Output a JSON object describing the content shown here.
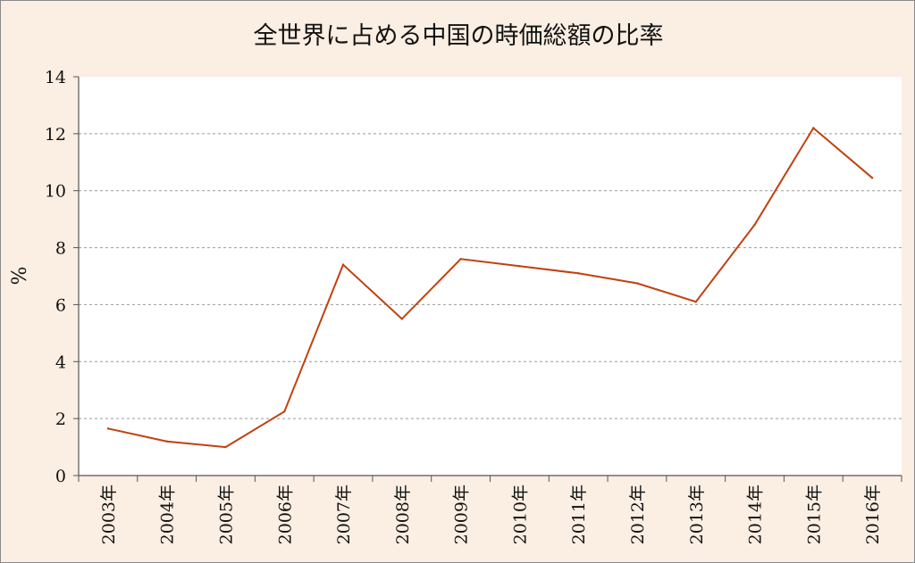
{
  "chart_data": {
    "type": "line",
    "title": "全世界に占める中国の時価総額の比率",
    "ylabel": "%",
    "xlabel": "",
    "ylim": [
      0,
      14
    ],
    "yticks": [
      0,
      2,
      4,
      6,
      8,
      10,
      12,
      14
    ],
    "grid": true,
    "legend": "none",
    "categories": [
      "2003年",
      "2004年",
      "2005年",
      "2006年",
      "2007年",
      "2008年",
      "2009年",
      "2010年",
      "2011年",
      "2012年",
      "2013年",
      "2014年",
      "2015年",
      "2016年"
    ],
    "series": [
      {
        "values": [
          1.65,
          1.2,
          1.0,
          2.25,
          7.4,
          5.5,
          7.6,
          7.35,
          7.1,
          6.75,
          6.1,
          8.8,
          12.2,
          10.45
        ],
        "color": "#c1400f"
      }
    ],
    "colors": {
      "background": "#fbeee2",
      "plot_area": "#ffffff",
      "grid": "#999999",
      "line": "#c1400f"
    }
  }
}
